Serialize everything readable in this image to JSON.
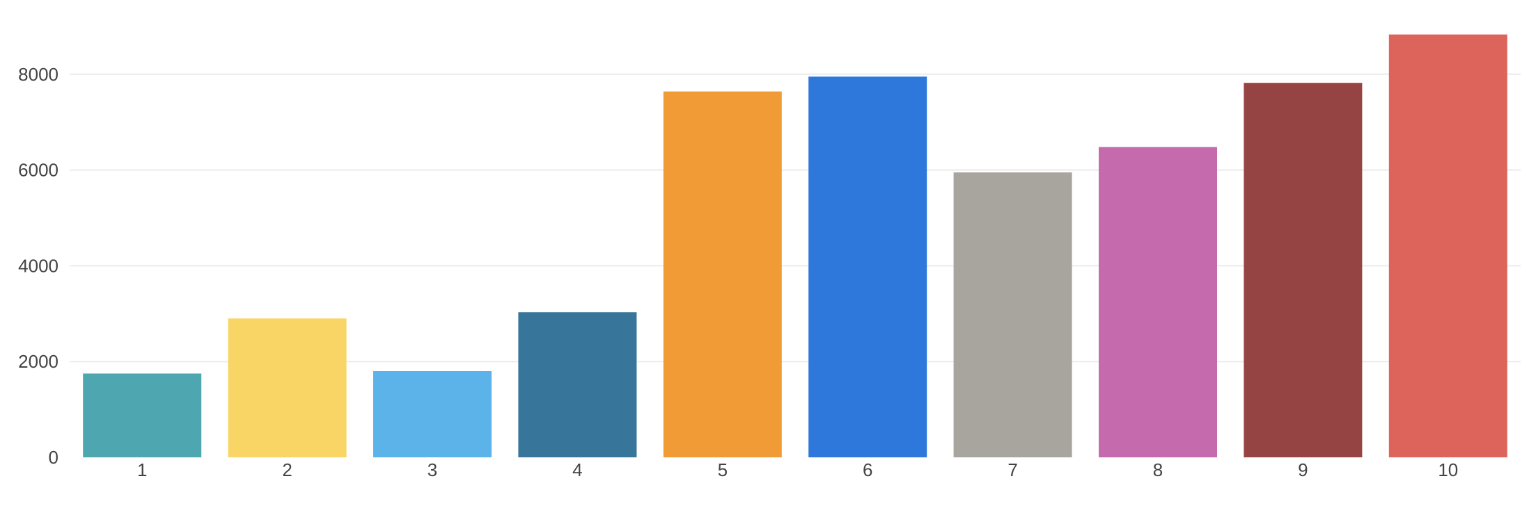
{
  "chart_data": {
    "type": "bar",
    "categories": [
      "1",
      "2",
      "3",
      "4",
      "5",
      "6",
      "7",
      "8",
      "9",
      "10"
    ],
    "values": [
      1750,
      2900,
      1800,
      3030,
      7640,
      7950,
      5950,
      6480,
      7820,
      8830
    ],
    "colors": [
      "#4ea7b0",
      "#f9d566",
      "#5cb3e9",
      "#37759b",
      "#f19b36",
      "#2e78dc",
      "#a8a59f",
      "#c56aad",
      "#964443",
      "#dc645b"
    ],
    "title": "",
    "xlabel": "",
    "ylabel": "",
    "ylim": [
      0,
      9000
    ],
    "yticks": [
      0,
      2000,
      4000,
      6000,
      8000
    ],
    "grid": true
  }
}
